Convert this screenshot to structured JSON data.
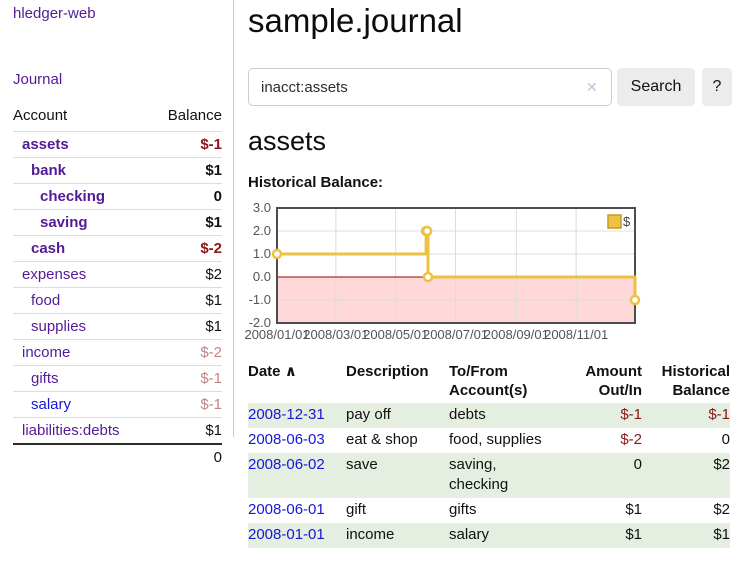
{
  "sidebar": {
    "app_title": "hledger-web",
    "nav": {
      "journal_label": "Journal"
    },
    "table": {
      "account_header": "Account",
      "balance_header": "Balance",
      "rows": [
        {
          "name": "assets",
          "balance": "$-1",
          "level": 1,
          "bold": true,
          "neg": "strong",
          "link_style": "visited"
        },
        {
          "name": "bank",
          "balance": "$1",
          "level": 2,
          "bold": true,
          "neg": "none",
          "link_style": "visited"
        },
        {
          "name": "checking",
          "balance": "0",
          "level": 3,
          "bold": true,
          "neg": "none",
          "link_style": "visited"
        },
        {
          "name": "saving",
          "balance": "$1",
          "level": 3,
          "bold": true,
          "neg": "none",
          "link_style": "visited"
        },
        {
          "name": "cash",
          "balance": "$-2",
          "level": 2,
          "bold": true,
          "neg": "strong",
          "link_style": "visited"
        },
        {
          "name": "expenses",
          "balance": "$2",
          "level": 1,
          "bold": false,
          "neg": "none",
          "link_style": "visited"
        },
        {
          "name": "food",
          "balance": "$1",
          "level": 2,
          "bold": false,
          "neg": "none",
          "link_style": "visited"
        },
        {
          "name": "supplies",
          "balance": "$1",
          "level": 2,
          "bold": false,
          "neg": "none",
          "link_style": "visited"
        },
        {
          "name": "income",
          "balance": "$-2",
          "level": 1,
          "bold": false,
          "neg": "soft",
          "link_style": "visited"
        },
        {
          "name": "gifts",
          "balance": "$-1",
          "level": 2,
          "bold": false,
          "neg": "soft",
          "link_style": "visited"
        },
        {
          "name": "salary",
          "balance": "$-1",
          "level": 2,
          "bold": false,
          "neg": "soft",
          "link_style": "unvisited"
        },
        {
          "name": "liabilities:debts",
          "balance": "$1",
          "level": 1,
          "bold": false,
          "neg": "none",
          "link_style": "visited"
        }
      ],
      "total": "0"
    }
  },
  "main": {
    "title": "sample.journal",
    "search": {
      "value": "inacct:assets",
      "clear_icon": "✕",
      "button_label": "Search",
      "help_label": "?"
    },
    "account_heading": "assets",
    "chart_label": "Historical Balance:"
  },
  "chart_data": {
    "type": "line",
    "subtype": "step-with-markers",
    "title": "Historical Balance",
    "series": [
      {
        "name": "$",
        "color": "#edc240",
        "points": [
          [
            "2008/01/01",
            1
          ],
          [
            "2008/06/01",
            2
          ],
          [
            "2008/06/02",
            2
          ],
          [
            "2008/06/03",
            0
          ],
          [
            "2008/12/31",
            -1
          ]
        ]
      }
    ],
    "x_range": [
      "2008/01/01",
      "2008/12/31"
    ],
    "x_ticks": [
      "2008/01/01",
      "2008/03/01",
      "2008/05/01",
      "2008/07/01",
      "2008/09/01",
      "2008/11/01"
    ],
    "y_ticks": [
      3.0,
      2.0,
      1.0,
      0.0,
      -1.0,
      -2.0
    ],
    "ylim": [
      -2,
      3
    ],
    "grid": true,
    "legend_position": "top-right",
    "negative_region_color": "#ffd9d9",
    "zero_line_color": "#990000",
    "tick_color": "#545454",
    "border_color": "#4d4d4d"
  },
  "register": {
    "headers": {
      "date": "Date",
      "sort_icon": "∧",
      "description": "Description",
      "accounts": "To/From\nAccount(s)",
      "amount": "Amount\nOut/In",
      "balance": "Historical\nBalance"
    },
    "rows": [
      {
        "date": "2008-12-31",
        "description": "pay off",
        "accounts": "debts",
        "amount": "$-1",
        "balance": "$-1",
        "amount_negative": true,
        "balance_negative": true,
        "shade": true
      },
      {
        "date": "2008-06-03",
        "description": "eat & shop",
        "accounts": "food, supplies",
        "amount": "$-2",
        "balance": "0",
        "amount_negative": true,
        "balance_negative": false,
        "shade": false
      },
      {
        "date": "2008-06-02",
        "description": "save",
        "accounts": "saving, checking",
        "amount": "0",
        "balance": "$2",
        "amount_negative": false,
        "balance_negative": false,
        "shade": true
      },
      {
        "date": "2008-06-01",
        "description": "gift",
        "accounts": "gifts",
        "amount": "$1",
        "balance": "$2",
        "amount_negative": false,
        "balance_negative": false,
        "shade": false
      },
      {
        "date": "2008-01-01",
        "description": "income",
        "accounts": "salary",
        "amount": "$1",
        "balance": "$1",
        "amount_negative": false,
        "balance_negative": false,
        "shade": true
      }
    ]
  }
}
